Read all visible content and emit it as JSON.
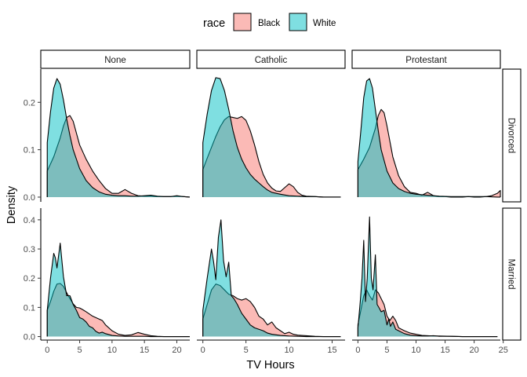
{
  "chart_data": {
    "type": "area",
    "subtype": "faceted density",
    "title": "",
    "xlabel": "TV Hours",
    "ylabel": "Density",
    "legend": {
      "title": "race",
      "placement": "top",
      "entries": [
        {
          "name": "Black",
          "color": "#F8766D"
        },
        {
          "name": "White",
          "color": "#00BFC4"
        }
      ]
    },
    "facet_cols": [
      "None",
      "Catholic",
      "Protestant"
    ],
    "facet_rows": [
      "Divorced",
      "Married"
    ],
    "fill_alpha": 0.5,
    "rows": [
      {
        "label": "Divorced",
        "ylim": [
          -0.01,
          0.27
        ],
        "yticks": [
          0.0,
          0.1,
          0.2
        ],
        "ytick_labels": [
          "0.0",
          "0.1",
          "0.2"
        ]
      },
      {
        "label": "Married",
        "ylim": [
          -0.012,
          0.44
        ],
        "yticks": [
          0.0,
          0.1,
          0.2,
          0.3,
          0.4
        ],
        "ytick_labels": [
          "0.0",
          "0.1",
          "0.2",
          "0.3",
          "0.4"
        ]
      }
    ],
    "cols": [
      {
        "label": "None",
        "xlim": [
          -1,
          22
        ],
        "xticks": [
          0,
          5,
          10,
          15,
          20
        ],
        "xtick_labels": [
          "0",
          "5",
          "10",
          "15",
          "20"
        ]
      },
      {
        "label": "Catholic",
        "xlim": [
          -0.7,
          16.5
        ],
        "xticks": [
          0,
          5,
          10,
          15
        ],
        "xtick_labels": [
          "0",
          "5",
          "10",
          "15"
        ]
      },
      {
        "label": "Protestant",
        "xlim": [
          -1,
          24.5
        ],
        "xticks": [
          0,
          5,
          10,
          15,
          20,
          25
        ],
        "xtick_labels": [
          "0",
          "5",
          "10",
          "15",
          "20",
          "25"
        ]
      }
    ],
    "panels": [
      {
        "row": "Divorced",
        "col": "None",
        "series": [
          {
            "name": "Black",
            "x": [
              0,
              1,
              2,
              2.5,
              3,
              3.5,
              4,
              5,
              6,
              7,
              8,
              9,
              10,
              11,
              12,
              13,
              14,
              15,
              16,
              17,
              18,
              19,
              20,
              21,
              22
            ],
            "y": [
              0.055,
              0.085,
              0.125,
              0.15,
              0.168,
              0.172,
              0.16,
              0.11,
              0.08,
              0.055,
              0.035,
              0.018,
              0.008,
              0.008,
              0.016,
              0.008,
              0.003,
              0.002,
              0.002,
              0.001,
              0.001,
              0.001,
              0.002,
              0.001,
              0.0
            ]
          },
          {
            "name": "White",
            "x": [
              0,
              0.5,
              1,
              1.5,
              2,
              2.5,
              3,
              3.5,
              4,
              5,
              6,
              7,
              8,
              9,
              10,
              11,
              12,
              13,
              14,
              15,
              16,
              17,
              18,
              19,
              20,
              21,
              22
            ],
            "y": [
              0.115,
              0.18,
              0.23,
              0.25,
              0.238,
              0.205,
              0.165,
              0.13,
              0.1,
              0.06,
              0.035,
              0.02,
              0.011,
              0.006,
              0.004,
              0.003,
              0.003,
              0.002,
              0.002,
              0.003,
              0.004,
              0.002,
              0.001,
              0.001,
              0.003,
              0.001,
              0.0
            ]
          }
        ]
      },
      {
        "row": "Divorced",
        "col": "Catholic",
        "series": [
          {
            "name": "Black",
            "x": [
              0,
              0.5,
              1,
              1.5,
              2,
              2.5,
              3,
              3.5,
              4,
              4.5,
              5,
              5.5,
              6,
              6.5,
              7,
              7.5,
              8,
              8.5,
              9,
              9.5,
              10,
              10.5,
              11,
              11.5,
              12,
              13,
              14,
              15,
              16
            ],
            "y": [
              0.058,
              0.082,
              0.105,
              0.128,
              0.148,
              0.163,
              0.17,
              0.168,
              0.166,
              0.17,
              0.162,
              0.14,
              0.11,
              0.075,
              0.048,
              0.03,
              0.019,
              0.013,
              0.012,
              0.02,
              0.028,
              0.022,
              0.01,
              0.004,
              0.002,
              0.001,
              0.0,
              0.0,
              0.0
            ]
          },
          {
            "name": "White",
            "x": [
              0,
              0.5,
              1,
              1.5,
              2,
              2.5,
              3,
              3.5,
              4,
              4.5,
              5,
              5.5,
              6,
              6.5,
              7,
              7.5,
              8,
              9,
              10,
              11,
              12,
              13,
              14,
              15,
              16
            ],
            "y": [
              0.115,
              0.175,
              0.225,
              0.252,
              0.25,
              0.225,
              0.185,
              0.14,
              0.105,
              0.08,
              0.062,
              0.048,
              0.038,
              0.03,
              0.022,
              0.015,
              0.01,
              0.006,
              0.003,
              0.002,
              0.001,
              0.001,
              0.0,
              0.0,
              0.0
            ]
          }
        ]
      },
      {
        "row": "Divorced",
        "col": "Protestant",
        "series": [
          {
            "name": "Black",
            "x": [
              0,
              1,
              2,
              3,
              3.5,
              4,
              4.5,
              5,
              6,
              7,
              8,
              9,
              10,
              11,
              12,
              13,
              14,
              15,
              16,
              17,
              18,
              19,
              20,
              21,
              22,
              23,
              24,
              24.5
            ],
            "y": [
              0.058,
              0.08,
              0.105,
              0.145,
              0.172,
              0.185,
              0.178,
              0.15,
              0.085,
              0.045,
              0.022,
              0.01,
              0.008,
              0.004,
              0.01,
              0.003,
              0.001,
              0.001,
              0.0,
              0.0,
              0.0,
              0.001,
              0.0,
              0.0,
              0.001,
              0.003,
              0.008,
              0.014
            ]
          },
          {
            "name": "White",
            "x": [
              0,
              0.5,
              1,
              1.5,
              2,
              2.5,
              3,
              3.5,
              4,
              5,
              6,
              7,
              8,
              9,
              10,
              11,
              12,
              14,
              16,
              18,
              20,
              22,
              24,
              24.5
            ],
            "y": [
              0.075,
              0.14,
              0.21,
              0.245,
              0.25,
              0.23,
              0.185,
              0.14,
              0.1,
              0.055,
              0.03,
              0.018,
              0.012,
              0.008,
              0.006,
              0.005,
              0.004,
              0.002,
              0.001,
              0.001,
              0.001,
              0.001,
              0.0,
              0.0
            ]
          }
        ]
      },
      {
        "row": "Married",
        "col": "None",
        "series": [
          {
            "name": "Black",
            "x": [
              0,
              0.5,
              1,
              1.5,
              2,
              2.5,
              3,
              3.5,
              4,
              4.5,
              5,
              5.5,
              6,
              7,
              8,
              8.5,
              9,
              10,
              11,
              12,
              13,
              14,
              15,
              16,
              17,
              18,
              20,
              22
            ],
            "y": [
              0.09,
              0.12,
              0.155,
              0.18,
              0.182,
              0.172,
              0.15,
              0.13,
              0.112,
              0.1,
              0.098,
              0.092,
              0.085,
              0.07,
              0.06,
              0.055,
              0.04,
              0.02,
              0.008,
              0.004,
              0.006,
              0.014,
              0.008,
              0.003,
              0.001,
              0.0,
              0.0,
              0.0
            ]
          },
          {
            "name": "White",
            "x": [
              0,
              0.5,
              1,
              1.25,
              1.5,
              2,
              2.5,
              3,
              3.5,
              4,
              4.5,
              5,
              5.5,
              6,
              6.5,
              7,
              7.5,
              8,
              8.5,
              9,
              10,
              11,
              12,
              13,
              14,
              15,
              16,
              18,
              20,
              22
            ],
            "y": [
              0.09,
              0.2,
              0.285,
              0.27,
              0.235,
              0.32,
              0.205,
              0.14,
              0.14,
              0.11,
              0.09,
              0.065,
              0.06,
              0.05,
              0.035,
              0.03,
              0.018,
              0.012,
              0.015,
              0.01,
              0.004,
              0.002,
              0.001,
              0.001,
              0.001,
              0.001,
              0.0,
              0.0,
              0.0,
              0.0
            ]
          }
        ]
      },
      {
        "row": "Married",
        "col": "Catholic",
        "series": [
          {
            "name": "Black",
            "x": [
              0,
              0.5,
              1,
              1.5,
              2,
              2.5,
              3,
              3.5,
              4,
              4.5,
              5,
              5.5,
              6,
              6.5,
              7,
              7.5,
              8,
              8.5,
              9,
              9.5,
              10,
              10.5,
              11,
              12,
              13,
              14,
              15,
              16
            ],
            "y": [
              0.06,
              0.11,
              0.16,
              0.18,
              0.175,
              0.16,
              0.145,
              0.14,
              0.13,
              0.125,
              0.13,
              0.12,
              0.1,
              0.07,
              0.06,
              0.04,
              0.05,
              0.03,
              0.02,
              0.01,
              0.015,
              0.008,
              0.005,
              0.003,
              0.001,
              0.0,
              0.0,
              0.0
            ]
          },
          {
            "name": "White",
            "x": [
              0,
              0.5,
              1,
              1.25,
              1.5,
              1.8,
              2.1,
              2.4,
              2.7,
              3,
              3.3,
              3.6,
              4,
              4.5,
              5,
              5.5,
              6,
              6.5,
              7,
              7.5,
              8,
              9,
              10,
              11,
              12,
              13,
              14,
              15,
              16
            ],
            "y": [
              0.09,
              0.2,
              0.3,
              0.255,
              0.195,
              0.34,
              0.4,
              0.26,
              0.205,
              0.255,
              0.14,
              0.13,
              0.11,
              0.08,
              0.06,
              0.04,
              0.03,
              0.025,
              0.02,
              0.012,
              0.008,
              0.004,
              0.002,
              0.001,
              0.0,
              0.0,
              0.0,
              0.0,
              0.0
            ]
          }
        ]
      },
      {
        "row": "Married",
        "col": "Protestant",
        "series": [
          {
            "name": "Black",
            "x": [
              0,
              0.5,
              1,
              1.5,
              2,
              2.5,
              3,
              3.5,
              4,
              4.5,
              5,
              5.5,
              6,
              6.5,
              7,
              8,
              9,
              10,
              11,
              12,
              13,
              14,
              16,
              18,
              20,
              22,
              24
            ],
            "y": [
              0.04,
              0.09,
              0.14,
              0.16,
              0.14,
              0.125,
              0.16,
              0.15,
              0.13,
              0.11,
              0.07,
              0.055,
              0.07,
              0.055,
              0.03,
              0.02,
              0.012,
              0.008,
              0.004,
              0.003,
              0.002,
              0.002,
              0.001,
              0.0,
              0.0,
              0.0,
              0.0
            ]
          },
          {
            "name": "White",
            "x": [
              0,
              0.4,
              0.7,
              1,
              1.3,
              1.6,
              2,
              2.3,
              2.6,
              3,
              3.3,
              3.6,
              4,
              4.5,
              5,
              5.3,
              5.6,
              6,
              6.5,
              7,
              8,
              9,
              10,
              11,
              12,
              13,
              14,
              15,
              16,
              18,
              20,
              22,
              24
            ],
            "y": [
              0.03,
              0.12,
              0.2,
              0.33,
              0.12,
              0.2,
              0.41,
              0.2,
              0.16,
              0.28,
              0.11,
              0.1,
              0.085,
              0.09,
              0.04,
              0.06,
              0.035,
              0.05,
              0.025,
              0.02,
              0.01,
              0.005,
              0.003,
              0.002,
              0.002,
              0.003,
              0.001,
              0.001,
              0.001,
              0.0,
              0.0,
              0.0,
              0.0
            ]
          }
        ]
      }
    ]
  }
}
